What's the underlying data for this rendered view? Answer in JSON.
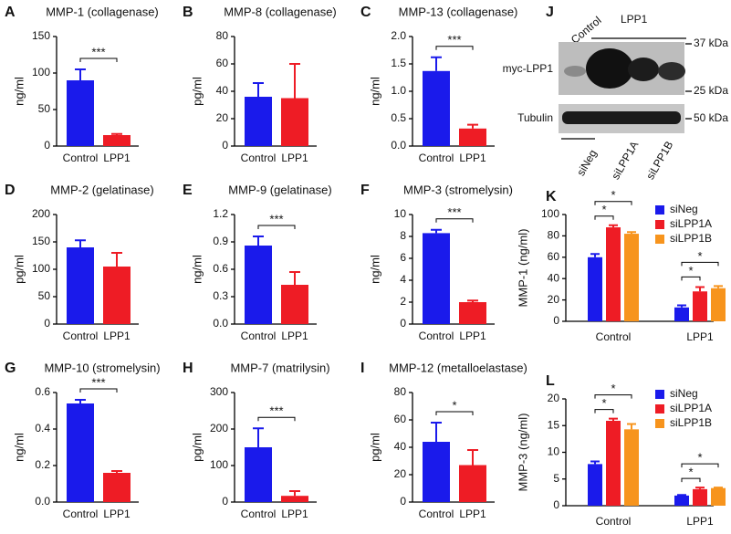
{
  "chart_data": [
    {
      "type": "bar",
      "label": "A",
      "title": "MMP-1 (collagenase)",
      "ylabel": "ng/ml",
      "categories": [
        "Control",
        "LPP1"
      ],
      "values": [
        90,
        15
      ],
      "errors": [
        15,
        1.5
      ],
      "colors": [
        "#1a1aeb",
        "#ee1c25"
      ],
      "ylim": [
        0,
        150
      ],
      "yticks": [
        0,
        50,
        100,
        150
      ],
      "annotation": "***"
    },
    {
      "type": "bar",
      "label": "B",
      "title": "MMP-8 (collagenase)",
      "ylabel": "pg/ml",
      "categories": [
        "Control",
        "LPP1"
      ],
      "values": [
        36,
        35
      ],
      "errors": [
        10,
        25
      ],
      "colors": [
        "#1a1aeb",
        "#ee1c25"
      ],
      "ylim": [
        0,
        80
      ],
      "yticks": [
        0,
        20,
        40,
        60,
        80
      ]
    },
    {
      "type": "bar",
      "label": "C",
      "title": "MMP-13 (collagenase)",
      "ylabel": "ng/ml",
      "categories": [
        "Control",
        "LPP1"
      ],
      "values": [
        1.37,
        0.32
      ],
      "errors": [
        0.25,
        0.07
      ],
      "colors": [
        "#1a1aeb",
        "#ee1c25"
      ],
      "ylim": [
        0,
        2
      ],
      "yticks": [
        {
          "value": 0,
          "label": "0.0"
        },
        0.5,
        {
          "value": 1,
          "label": "1.0"
        },
        1.5,
        {
          "value": 2,
          "label": "2.0"
        }
      ],
      "annotation": "***"
    },
    {
      "type": "bar",
      "label": "D",
      "title": "MMP-2 (gelatinase)",
      "ylabel": "pg/ml",
      "categories": [
        "Control",
        "LPP1"
      ],
      "values": [
        140,
        105
      ],
      "errors": [
        13,
        25
      ],
      "colors": [
        "#1a1aeb",
        "#ee1c25"
      ],
      "ylim": [
        0,
        200
      ],
      "yticks": [
        0,
        50,
        100,
        150,
        200
      ]
    },
    {
      "type": "bar",
      "label": "E",
      "title": "MMP-9 (gelatinase)",
      "ylabel": "ng/ml",
      "categories": [
        "Control",
        "LPP1"
      ],
      "values": [
        0.86,
        0.43
      ],
      "errors": [
        0.1,
        0.14
      ],
      "colors": [
        "#1a1aeb",
        "#ee1c25"
      ],
      "ylim": [
        0,
        1.2
      ],
      "yticks": [
        {
          "value": 0,
          "label": "0.0"
        },
        0.3,
        0.6,
        0.9,
        1.2
      ],
      "annotation": "***"
    },
    {
      "type": "bar",
      "label": "F",
      "title": "MMP-3 (stromelysin)",
      "ylabel": "ng/ml",
      "categories": [
        "Control",
        "LPP1"
      ],
      "values": [
        8.3,
        2.0
      ],
      "errors": [
        0.3,
        0.15
      ],
      "colors": [
        "#1a1aeb",
        "#ee1c25"
      ],
      "ylim": [
        0,
        10
      ],
      "yticks": [
        0,
        2,
        4,
        6,
        8,
        10
      ],
      "annotation": "***"
    },
    {
      "type": "bar",
      "label": "G",
      "title": "MMP-10 (stromelysin)",
      "ylabel": "ng/ml",
      "categories": [
        "Control",
        "LPP1"
      ],
      "values": [
        0.54,
        0.16
      ],
      "errors": [
        0.02,
        0.01
      ],
      "colors": [
        "#1a1aeb",
        "#ee1c25"
      ],
      "ylim": [
        0,
        0.6
      ],
      "yticks": [
        {
          "value": 0,
          "label": "0.0"
        },
        0.2,
        0.4,
        0.6
      ],
      "annotation": "***"
    },
    {
      "type": "bar",
      "label": "H",
      "title": "MMP-7 (matrilysin)",
      "ylabel": "pg/ml",
      "categories": [
        "Control",
        "LPP1"
      ],
      "values": [
        150,
        17
      ],
      "errors": [
        52,
        13
      ],
      "colors": [
        "#1a1aeb",
        "#ee1c25"
      ],
      "ylim": [
        0,
        300
      ],
      "yticks": [
        0,
        100,
        200,
        300
      ],
      "annotation": "***"
    },
    {
      "type": "bar",
      "label": "I",
      "title": "MMP-12 (metalloelastase)",
      "ylabel": "pg/ml",
      "categories": [
        "Control",
        "LPP1"
      ],
      "values": [
        44,
        27
      ],
      "errors": [
        14,
        11
      ],
      "colors": [
        "#1a1aeb",
        "#ee1c25"
      ],
      "ylim": [
        0,
        80
      ],
      "yticks": [
        0,
        20,
        40,
        60,
        80
      ],
      "annotation": "*"
    },
    {
      "type": "grouped_bar",
      "label": "K",
      "ylabel": "MMP-1 (ng/ml)",
      "categories": [
        "Control",
        "LPP1"
      ],
      "series": [
        {
          "name": "siNeg",
          "color": "#1a1aeb",
          "values": [
            60,
            13
          ],
          "errors": [
            3,
            2
          ]
        },
        {
          "name": "siLPP1A",
          "color": "#ee1c25",
          "values": [
            88,
            28
          ],
          "errors": [
            2,
            4
          ]
        },
        {
          "name": "siLPP1B",
          "color": "#f7941d",
          "values": [
            82,
            31
          ],
          "errors": [
            1.5,
            2
          ]
        }
      ],
      "ylim": [
        0,
        100
      ],
      "yticks": [
        0,
        20,
        40,
        60,
        80,
        100
      ],
      "annotations": [
        "*",
        "*",
        "*",
        "*"
      ]
    },
    {
      "type": "grouped_bar",
      "label": "L",
      "ylabel": "MMP-3 (ng/ml)",
      "categories": [
        "Control",
        "LPP1"
      ],
      "series": [
        {
          "name": "siNeg",
          "color": "#1a1aeb",
          "values": [
            7.8,
            1.9
          ],
          "errors": [
            0.5,
            0.1
          ]
        },
        {
          "name": "siLPP1A",
          "color": "#ee1c25",
          "values": [
            15.9,
            3.1
          ],
          "errors": [
            0.4,
            0.3
          ]
        },
        {
          "name": "siLPP1B",
          "color": "#f7941d",
          "values": [
            14.3,
            3.3
          ],
          "errors": [
            1.0,
            0.1
          ]
        }
      ],
      "ylim": [
        0,
        20
      ],
      "yticks": [
        0,
        5,
        10,
        15,
        20
      ],
      "annotations": [
        "*",
        "*",
        "*",
        "*"
      ]
    }
  ],
  "blot": {
    "label": "J",
    "control": "Control",
    "treatment": "LPP1",
    "rows": [
      "myc-LPP1",
      "Tubulin"
    ],
    "markers": [
      "37 kDa",
      "25 kDa",
      "50 kDa"
    ],
    "lanes": [
      "siNeg",
      "siLPP1A",
      "siLPP1B"
    ]
  }
}
